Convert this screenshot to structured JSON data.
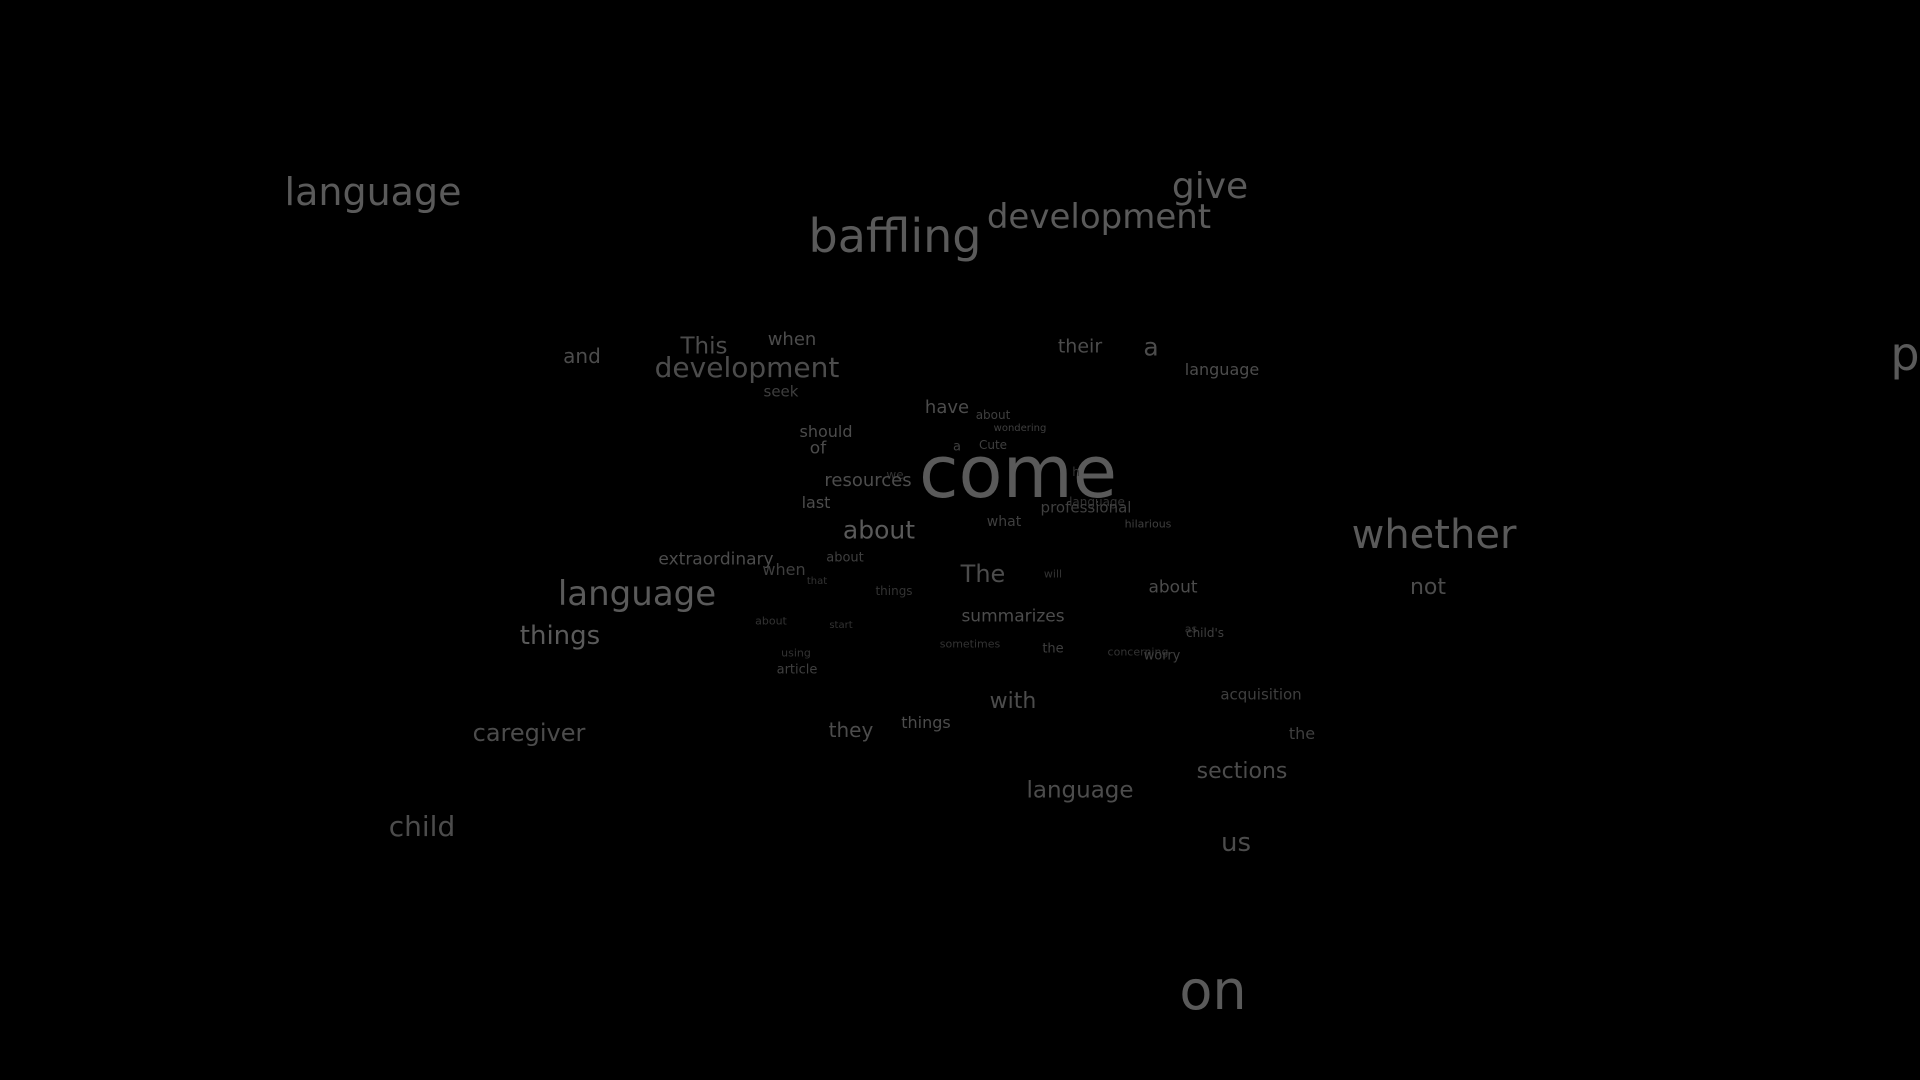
{
  "colors": {
    "background": "#000000",
    "word_levels": [
      "#5a5a5a",
      "#4c4c4c",
      "#3f3f3f",
      "#333333"
    ]
  },
  "words": [
    {
      "text": "language",
      "level": 0
    },
    {
      "text": "give",
      "level": 0
    },
    {
      "text": "baffling",
      "level": 0
    },
    {
      "text": "development",
      "level": 0
    },
    {
      "text": "p",
      "level": 0
    },
    {
      "text": "and",
      "level": 1
    },
    {
      "text": "This",
      "level": 1
    },
    {
      "text": "when",
      "level": 1
    },
    {
      "text": "development",
      "level": 1
    },
    {
      "text": "their",
      "level": 1
    },
    {
      "text": "a",
      "level": 1
    },
    {
      "text": "language",
      "level": 1
    },
    {
      "text": "seek",
      "level": 2
    },
    {
      "text": "have",
      "level": 1
    },
    {
      "text": "about",
      "level": 2
    },
    {
      "text": "wondering",
      "level": 2
    },
    {
      "text": "should",
      "level": 1
    },
    {
      "text": "of",
      "level": 1
    },
    {
      "text": "a",
      "level": 2
    },
    {
      "text": "Cute",
      "level": 2
    },
    {
      "text": "come",
      "level": 0
    },
    {
      "text": "we",
      "level": 3
    },
    {
      "text": "resources",
      "level": 1
    },
    {
      "text": "h",
      "level": 3
    },
    {
      "text": "language",
      "level": 3
    },
    {
      "text": "professional",
      "level": 2
    },
    {
      "text": "last",
      "level": 1
    },
    {
      "text": "about",
      "level": 0
    },
    {
      "text": "what",
      "level": 2
    },
    {
      "text": "hilarious",
      "level": 2
    },
    {
      "text": "whether",
      "level": 0
    },
    {
      "text": "extraordinary",
      "level": 1
    },
    {
      "text": "when",
      "level": 2
    },
    {
      "text": "about",
      "level": 2
    },
    {
      "text": "The",
      "level": 1
    },
    {
      "text": "will",
      "level": 3
    },
    {
      "text": "language",
      "level": 0
    },
    {
      "text": "that",
      "level": 3
    },
    {
      "text": "things",
      "level": 3
    },
    {
      "text": "about",
      "level": 1
    },
    {
      "text": "not",
      "level": 1
    },
    {
      "text": "things",
      "level": 0
    },
    {
      "text": "summarizes",
      "level": 1
    },
    {
      "text": "about",
      "level": 3
    },
    {
      "text": "start",
      "level": 3
    },
    {
      "text": "as",
      "level": 3
    },
    {
      "text": "child's",
      "level": 2
    },
    {
      "text": "sometimes",
      "level": 3
    },
    {
      "text": "the",
      "level": 2
    },
    {
      "text": "concerning",
      "level": 3
    },
    {
      "text": "worry",
      "level": 2
    },
    {
      "text": "using",
      "level": 3
    },
    {
      "text": "article",
      "level": 2
    },
    {
      "text": "with",
      "level": 1
    },
    {
      "text": "acquisition",
      "level": 2
    },
    {
      "text": "caregiver",
      "level": 1
    },
    {
      "text": "they",
      "level": 1
    },
    {
      "text": "things",
      "level": 1
    },
    {
      "text": "the",
      "level": 2
    },
    {
      "text": "sections",
      "level": 1
    },
    {
      "text": "language",
      "level": 1
    },
    {
      "text": "child",
      "level": 1
    },
    {
      "text": "us",
      "level": 1
    },
    {
      "text": "on",
      "level": 0
    }
  ]
}
